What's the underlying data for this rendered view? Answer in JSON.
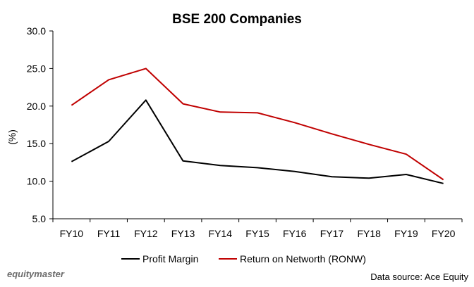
{
  "chart_data": {
    "type": "line",
    "title": "BSE 200 Companies",
    "ylabel": "(%)",
    "xlabel": "",
    "categories": [
      "FY10",
      "FY11",
      "FY12",
      "FY13",
      "FY14",
      "FY15",
      "FY16",
      "FY17",
      "FY18",
      "FY19",
      "FY20"
    ],
    "ylim": [
      5.0,
      30.0
    ],
    "yticks": [
      "5.0",
      "10.0",
      "15.0",
      "20.0",
      "25.0",
      "30.0"
    ],
    "grid": false,
    "legend_position": "bottom",
    "series": [
      {
        "name": "Profit Margin",
        "color": "#000000",
        "values": [
          12.6,
          15.3,
          20.8,
          12.7,
          12.1,
          11.8,
          11.3,
          10.6,
          10.4,
          10.9,
          9.7
        ]
      },
      {
        "name": "Return on Networth (RONW)",
        "color": "#c00000",
        "values": [
          20.1,
          23.5,
          25.0,
          20.3,
          19.2,
          19.1,
          17.8,
          16.3,
          14.9,
          13.6,
          10.2
        ]
      }
    ]
  },
  "footer": {
    "logo_text": "equitymaster",
    "source_text": "Data source: Ace Equity"
  }
}
